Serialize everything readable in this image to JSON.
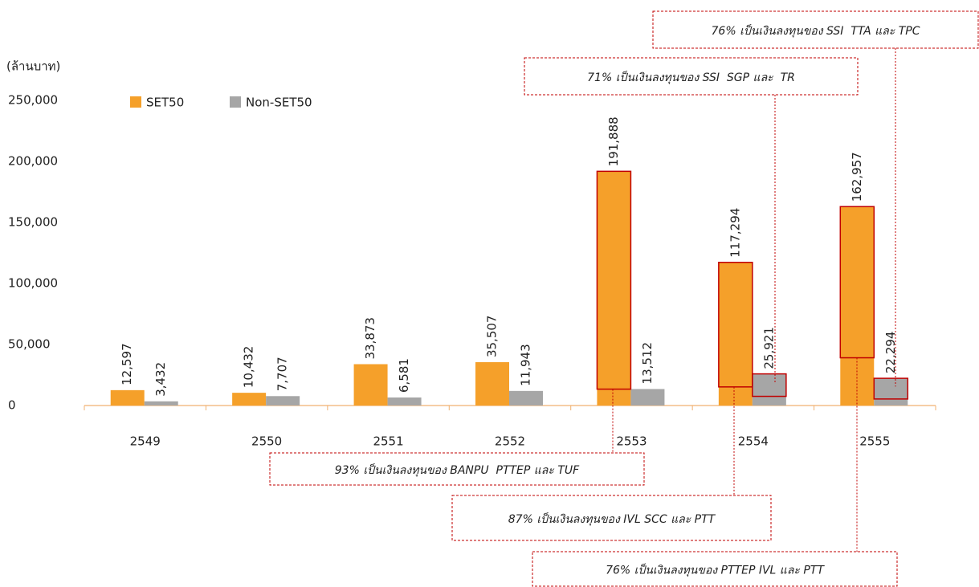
{
  "chart_data": {
    "type": "bar",
    "y_axis_label": "(ล้านบาท)",
    "categories": [
      "2549",
      "2550",
      "2551",
      "2552",
      "2553",
      "2554",
      "2555"
    ],
    "series": [
      {
        "name": "SET50",
        "color": "#f5a02a",
        "values": [
          12597,
          10432,
          33873,
          35507,
          191888,
          117294,
          162957
        ],
        "value_labels": [
          "12,597",
          "10,432",
          "33,873",
          "35,507",
          "191,888",
          "117,294",
          "162,957"
        ]
      },
      {
        "name": "Non-SET50",
        "color": "#a6a6a6",
        "values": [
          3432,
          7707,
          6581,
          11943,
          13512,
          25921,
          22294
        ],
        "value_labels": [
          "3,432",
          "7,707",
          "6,581",
          "11,943",
          "13,512",
          "25,921",
          "22,294"
        ]
      }
    ],
    "ylim": [
      0,
      250000
    ],
    "yticks": [
      0,
      {
        "value": 50000,
        "label": "50,000"
      },
      {
        "value": 100000,
        "label": "100,000"
      },
      {
        "value": 150000,
        "label": "150,000"
      },
      {
        "value": 200000,
        "label": "200,000"
      },
      {
        "value": 250000,
        "label": "250,000"
      }
    ],
    "legend": "top-left",
    "annotations": [
      {
        "series": "SET50",
        "category": "2553",
        "share": 93,
        "share_label": "93%",
        "text": " เป็นเงินลงทุนของ BANPU  PTTEP และ TUF"
      },
      {
        "series": "SET50",
        "category": "2554",
        "share": 87,
        "share_label": "87%",
        "text": " เป็นเงินลงทุนของ IVL SCC และ PTT"
      },
      {
        "series": "SET50",
        "category": "2555",
        "share": 76,
        "share_label": "76%",
        "text": " เป็นเงินลงทุนของ PTTEP IVL และ PTT"
      },
      {
        "series": "Non-SET50",
        "category": "2554",
        "share": 71,
        "share_label": "71%",
        "text": " เป็นเงินลงทุนของ SSI  SGP และ  TR"
      },
      {
        "series": "Non-SET50",
        "category": "2555",
        "share": 76,
        "share_label": "76%",
        "text": " เป็นเงินลงทุนของ SSI  TTA และ TPC"
      }
    ]
  }
}
